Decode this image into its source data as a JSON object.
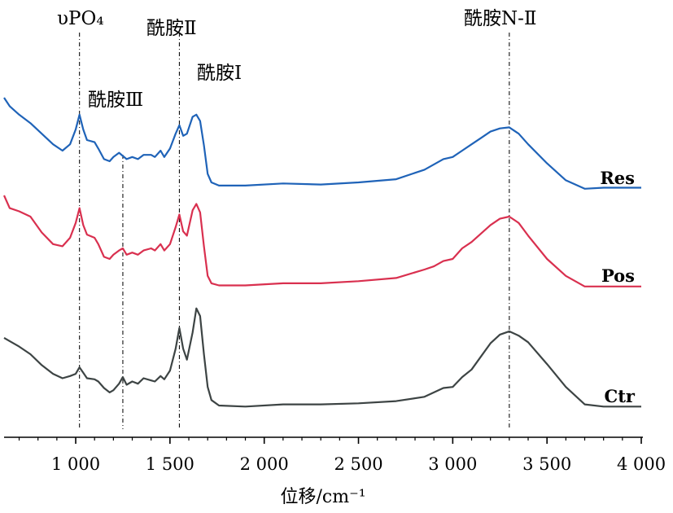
{
  "chart_data": {
    "type": "line",
    "xlabel": "位移/cm⁻¹",
    "xlim": [
      620,
      4000
    ],
    "x_ticks": [
      1000,
      1500,
      2000,
      2500,
      3000,
      3500,
      4000
    ],
    "x_tick_labels": [
      "1 000",
      "1 500",
      "2 000",
      "2 500",
      "3 000",
      "3 500",
      "4 000"
    ],
    "y_axis_shown": false,
    "legend": "none (series labels at right end of each curve)",
    "grid": false,
    "reference_lines": [
      {
        "x": 1020,
        "label": "υPO₄"
      },
      {
        "x": 1250,
        "label": "酰胺Ⅲ"
      },
      {
        "x": 1550,
        "label": "酰胺Ⅱ"
      },
      {
        "x": 3300,
        "label": "酰胺N-Ⅱ"
      }
    ],
    "annotations": [
      {
        "x": 1640,
        "label": "酰胺Ⅰ"
      }
    ],
    "series_y_unit": "relative intensity (vertically offset)",
    "series": [
      {
        "name": "Res",
        "color": "#1f63b8",
        "points": [
          [
            620,
            0.9
          ],
          [
            650,
            0.82
          ],
          [
            700,
            0.74
          ],
          [
            760,
            0.66
          ],
          [
            820,
            0.56
          ],
          [
            880,
            0.46
          ],
          [
            930,
            0.4
          ],
          [
            970,
            0.46
          ],
          [
            1000,
            0.6
          ],
          [
            1020,
            0.74
          ],
          [
            1040,
            0.6
          ],
          [
            1060,
            0.5
          ],
          [
            1100,
            0.48
          ],
          [
            1120,
            0.42
          ],
          [
            1150,
            0.32
          ],
          [
            1180,
            0.3
          ],
          [
            1200,
            0.34
          ],
          [
            1230,
            0.38
          ],
          [
            1250,
            0.35
          ],
          [
            1270,
            0.32
          ],
          [
            1300,
            0.34
          ],
          [
            1330,
            0.32
          ],
          [
            1360,
            0.36
          ],
          [
            1400,
            0.36
          ],
          [
            1420,
            0.34
          ],
          [
            1450,
            0.4
          ],
          [
            1470,
            0.34
          ],
          [
            1500,
            0.42
          ],
          [
            1530,
            0.56
          ],
          [
            1550,
            0.64
          ],
          [
            1570,
            0.54
          ],
          [
            1590,
            0.56
          ],
          [
            1620,
            0.72
          ],
          [
            1640,
            0.74
          ],
          [
            1660,
            0.68
          ],
          [
            1680,
            0.45
          ],
          [
            1700,
            0.18
          ],
          [
            1720,
            0.1
          ],
          [
            1760,
            0.07
          ],
          [
            1900,
            0.07
          ],
          [
            2100,
            0.09
          ],
          [
            2300,
            0.08
          ],
          [
            2500,
            0.1
          ],
          [
            2700,
            0.13
          ],
          [
            2850,
            0.22
          ],
          [
            2900,
            0.27
          ],
          [
            2950,
            0.32
          ],
          [
            3000,
            0.34
          ],
          [
            3050,
            0.4
          ],
          [
            3100,
            0.46
          ],
          [
            3150,
            0.52
          ],
          [
            3200,
            0.58
          ],
          [
            3250,
            0.61
          ],
          [
            3300,
            0.62
          ],
          [
            3350,
            0.56
          ],
          [
            3400,
            0.46
          ],
          [
            3500,
            0.28
          ],
          [
            3600,
            0.12
          ],
          [
            3700,
            0.04
          ],
          [
            3800,
            0.05
          ],
          [
            4000,
            0.05
          ]
        ]
      },
      {
        "name": "Pos",
        "color": "#d9304f",
        "points": [
          [
            620,
            0.9
          ],
          [
            650,
            0.78
          ],
          [
            700,
            0.75
          ],
          [
            760,
            0.7
          ],
          [
            820,
            0.55
          ],
          [
            880,
            0.44
          ],
          [
            930,
            0.42
          ],
          [
            970,
            0.5
          ],
          [
            1000,
            0.64
          ],
          [
            1020,
            0.78
          ],
          [
            1040,
            0.62
          ],
          [
            1060,
            0.53
          ],
          [
            1100,
            0.5
          ],
          [
            1120,
            0.44
          ],
          [
            1150,
            0.32
          ],
          [
            1180,
            0.3
          ],
          [
            1200,
            0.34
          ],
          [
            1230,
            0.38
          ],
          [
            1250,
            0.4
          ],
          [
            1270,
            0.34
          ],
          [
            1300,
            0.36
          ],
          [
            1330,
            0.34
          ],
          [
            1360,
            0.38
          ],
          [
            1400,
            0.4
          ],
          [
            1420,
            0.38
          ],
          [
            1450,
            0.44
          ],
          [
            1470,
            0.38
          ],
          [
            1500,
            0.44
          ],
          [
            1530,
            0.6
          ],
          [
            1550,
            0.72
          ],
          [
            1570,
            0.56
          ],
          [
            1590,
            0.52
          ],
          [
            1620,
            0.76
          ],
          [
            1640,
            0.82
          ],
          [
            1660,
            0.74
          ],
          [
            1680,
            0.42
          ],
          [
            1700,
            0.14
          ],
          [
            1720,
            0.07
          ],
          [
            1760,
            0.05
          ],
          [
            1900,
            0.05
          ],
          [
            2100,
            0.07
          ],
          [
            2300,
            0.07
          ],
          [
            2500,
            0.09
          ],
          [
            2700,
            0.12
          ],
          [
            2850,
            0.2
          ],
          [
            2900,
            0.23
          ],
          [
            2950,
            0.28
          ],
          [
            3000,
            0.3
          ],
          [
            3050,
            0.4
          ],
          [
            3100,
            0.46
          ],
          [
            3150,
            0.54
          ],
          [
            3200,
            0.62
          ],
          [
            3250,
            0.68
          ],
          [
            3300,
            0.7
          ],
          [
            3350,
            0.64
          ],
          [
            3400,
            0.52
          ],
          [
            3500,
            0.3
          ],
          [
            3600,
            0.14
          ],
          [
            3700,
            0.04
          ],
          [
            3800,
            0.04
          ],
          [
            4000,
            0.04
          ]
        ]
      },
      {
        "name": "Ctr",
        "color": "#3d4444",
        "points": [
          [
            620,
            1.3
          ],
          [
            650,
            1.24
          ],
          [
            700,
            1.14
          ],
          [
            760,
            1.0
          ],
          [
            820,
            0.8
          ],
          [
            880,
            0.64
          ],
          [
            930,
            0.56
          ],
          [
            970,
            0.6
          ],
          [
            1000,
            0.64
          ],
          [
            1020,
            0.76
          ],
          [
            1040,
            0.66
          ],
          [
            1060,
            0.56
          ],
          [
            1100,
            0.54
          ],
          [
            1120,
            0.5
          ],
          [
            1150,
            0.38
          ],
          [
            1180,
            0.3
          ],
          [
            1200,
            0.34
          ],
          [
            1230,
            0.46
          ],
          [
            1250,
            0.58
          ],
          [
            1270,
            0.44
          ],
          [
            1300,
            0.5
          ],
          [
            1330,
            0.46
          ],
          [
            1360,
            0.56
          ],
          [
            1400,
            0.52
          ],
          [
            1420,
            0.5
          ],
          [
            1450,
            0.6
          ],
          [
            1470,
            0.54
          ],
          [
            1500,
            0.7
          ],
          [
            1530,
            1.1
          ],
          [
            1550,
            1.48
          ],
          [
            1570,
            1.1
          ],
          [
            1590,
            0.9
          ],
          [
            1620,
            1.4
          ],
          [
            1640,
            1.84
          ],
          [
            1660,
            1.7
          ],
          [
            1680,
            1.0
          ],
          [
            1700,
            0.4
          ],
          [
            1720,
            0.16
          ],
          [
            1760,
            0.06
          ],
          [
            1900,
            0.04
          ],
          [
            2100,
            0.08
          ],
          [
            2300,
            0.08
          ],
          [
            2500,
            0.1
          ],
          [
            2700,
            0.14
          ],
          [
            2850,
            0.22
          ],
          [
            2900,
            0.3
          ],
          [
            2950,
            0.38
          ],
          [
            3000,
            0.4
          ],
          [
            3050,
            0.58
          ],
          [
            3100,
            0.72
          ],
          [
            3150,
            0.96
          ],
          [
            3200,
            1.2
          ],
          [
            3250,
            1.36
          ],
          [
            3300,
            1.42
          ],
          [
            3350,
            1.34
          ],
          [
            3400,
            1.22
          ],
          [
            3500,
            0.82
          ],
          [
            3600,
            0.4
          ],
          [
            3700,
            0.08
          ],
          [
            3800,
            0.04
          ],
          [
            4000,
            0.04
          ]
        ]
      }
    ]
  }
}
